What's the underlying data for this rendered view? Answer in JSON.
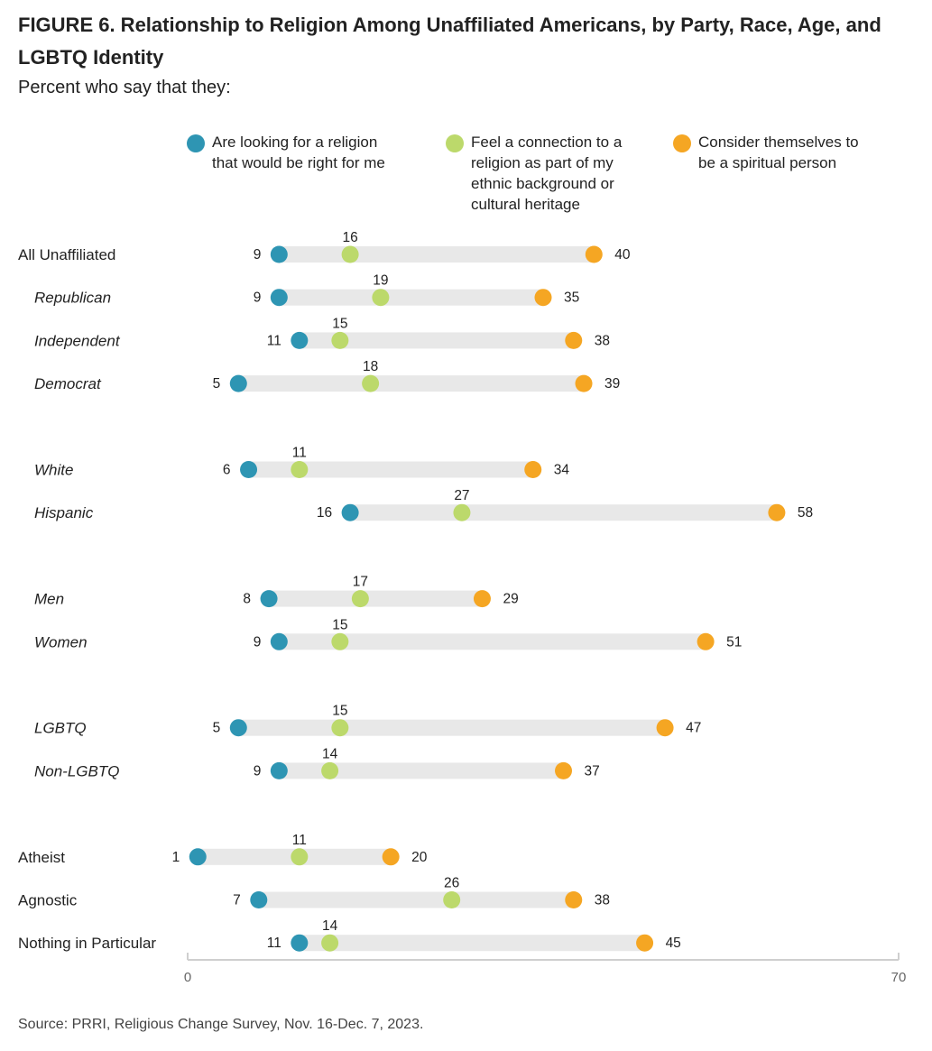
{
  "title": "FIGURE 6. Relationship to Religion Among Unaffiliated Americans, by Party, Race, Age, and LGBTQ Identity",
  "subtitle": "Percent who say that they:",
  "source": "Source: PRRI, Religious Change Survey, Nov. 16-Dec. 7, 2023.",
  "colors": {
    "looking": "#2e95b3",
    "connection": "#bcd96b",
    "spiritual": "#f5a623",
    "track": "#e8e8e8"
  },
  "chart_data": {
    "type": "dot-range",
    "xlim": [
      0,
      70
    ],
    "x_ticks": [
      "0",
      "70"
    ],
    "legend_placement": "top",
    "series": [
      {
        "key": "looking",
        "name": "Are looking for a religion\nthat would be right for me"
      },
      {
        "key": "connection",
        "name": "Feel a connection to a\nreligion as part of my\nethnic background or\ncultural heritage"
      },
      {
        "key": "spiritual",
        "name": "Consider themselves to\nbe a spiritual person"
      }
    ],
    "rows": [
      {
        "label": "All Unaffiliated",
        "italic": false,
        "group": 0,
        "looking": 9,
        "connection": 16,
        "spiritual": 40
      },
      {
        "label": "Republican",
        "italic": true,
        "group": 0,
        "looking": 9,
        "connection": 19,
        "spiritual": 35
      },
      {
        "label": "Independent",
        "italic": true,
        "group": 0,
        "looking": 11,
        "connection": 15,
        "spiritual": 38
      },
      {
        "label": "Democrat",
        "italic": true,
        "group": 0,
        "looking": 5,
        "connection": 18,
        "spiritual": 39
      },
      {
        "label": "White",
        "italic": true,
        "group": 1,
        "looking": 6,
        "connection": 11,
        "spiritual": 34
      },
      {
        "label": "Hispanic",
        "italic": true,
        "group": 1,
        "looking": 16,
        "connection": 27,
        "spiritual": 58
      },
      {
        "label": "Men",
        "italic": true,
        "group": 2,
        "looking": 8,
        "connection": 17,
        "spiritual": 29
      },
      {
        "label": "Women",
        "italic": true,
        "group": 2,
        "looking": 9,
        "connection": 15,
        "spiritual": 51
      },
      {
        "label": "LGBTQ",
        "italic": true,
        "group": 3,
        "looking": 5,
        "connection": 15,
        "spiritual": 47
      },
      {
        "label": "Non-LGBTQ",
        "italic": true,
        "group": 3,
        "looking": 9,
        "connection": 14,
        "spiritual": 37
      },
      {
        "label": "Atheist",
        "italic": false,
        "group": 4,
        "looking": 1,
        "connection": 11,
        "spiritual": 20
      },
      {
        "label": "Agnostic",
        "italic": false,
        "group": 4,
        "looking": 7,
        "connection": 26,
        "spiritual": 38
      },
      {
        "label": "Nothing in Particular",
        "italic": false,
        "group": 4,
        "looking": 11,
        "connection": 14,
        "spiritual": 45
      }
    ]
  }
}
